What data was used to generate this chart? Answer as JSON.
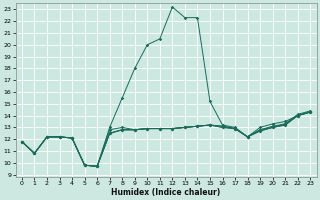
{
  "xlabel": "Humidex (Indice chaleur)",
  "bg_color": "#cce8e0",
  "line_color": "#1a6b5a",
  "xlim": [
    -0.5,
    23.5
  ],
  "ylim": [
    8.8,
    23.5
  ],
  "yticks": [
    9,
    10,
    11,
    12,
    13,
    14,
    15,
    16,
    17,
    18,
    19,
    20,
    21,
    22,
    23
  ],
  "xticks": [
    0,
    1,
    2,
    3,
    4,
    5,
    6,
    7,
    8,
    9,
    10,
    11,
    12,
    13,
    14,
    15,
    16,
    17,
    18,
    19,
    20,
    21,
    22,
    23
  ],
  "lines": [
    {
      "x": [
        0,
        1,
        2,
        3,
        4,
        5,
        6,
        7,
        8,
        9,
        10,
        11,
        12,
        13,
        14,
        15,
        16,
        17,
        18,
        19,
        20,
        21,
        22,
        23
      ],
      "y": [
        11.8,
        10.8,
        12.2,
        12.2,
        12.1,
        9.8,
        9.7,
        13.0,
        15.5,
        18.0,
        20.0,
        20.5,
        23.2,
        22.3,
        22.3,
        15.2,
        13.2,
        13.0,
        12.2,
        13.0,
        13.3,
        13.5,
        14.0,
        14.3
      ]
    },
    {
      "x": [
        0,
        1,
        2,
        3,
        4,
        5,
        6,
        7,
        8,
        9,
        10,
        11,
        12,
        13,
        14,
        15,
        16,
        17,
        18,
        19,
        20,
        21,
        22,
        23
      ],
      "y": [
        11.8,
        10.8,
        12.2,
        12.2,
        12.1,
        9.8,
        9.7,
        12.5,
        12.8,
        12.8,
        12.9,
        12.9,
        12.9,
        13.0,
        13.1,
        13.2,
        13.0,
        12.9,
        12.2,
        12.7,
        13.0,
        13.2,
        14.0,
        14.3
      ]
    },
    {
      "x": [
        0,
        1,
        2,
        3,
        4,
        5,
        6,
        7,
        8,
        9,
        10,
        11,
        12,
        13,
        14,
        15,
        16,
        17,
        18,
        19,
        20,
        21,
        22,
        23
      ],
      "y": [
        11.8,
        10.8,
        12.2,
        12.2,
        12.1,
        9.8,
        9.7,
        12.5,
        12.8,
        12.8,
        12.9,
        12.9,
        12.9,
        13.0,
        13.1,
        13.2,
        13.1,
        12.9,
        12.2,
        12.7,
        13.0,
        13.2,
        14.0,
        14.3
      ]
    },
    {
      "x": [
        0,
        1,
        2,
        3,
        4,
        5,
        6,
        7,
        8,
        9,
        10,
        11,
        12,
        13,
        14,
        15,
        16,
        17,
        18,
        19,
        20,
        21,
        22,
        23
      ],
      "y": [
        11.8,
        10.8,
        12.2,
        12.2,
        12.1,
        9.8,
        9.7,
        12.5,
        12.8,
        12.8,
        12.9,
        12.9,
        12.9,
        13.0,
        13.1,
        13.2,
        13.1,
        12.9,
        12.2,
        12.8,
        13.1,
        13.3,
        14.1,
        14.4
      ]
    },
    {
      "x": [
        0,
        1,
        2,
        3,
        4,
        5,
        6,
        7,
        8,
        9,
        10,
        11,
        12,
        13,
        14,
        15,
        16,
        17,
        18,
        19,
        20,
        21,
        22,
        23
      ],
      "y": [
        11.8,
        10.8,
        12.2,
        12.2,
        12.1,
        9.8,
        9.7,
        12.8,
        13.0,
        12.8,
        12.9,
        12.9,
        12.9,
        13.0,
        13.1,
        13.2,
        13.0,
        12.9,
        12.2,
        12.8,
        13.0,
        13.3,
        14.0,
        14.3
      ]
    }
  ]
}
